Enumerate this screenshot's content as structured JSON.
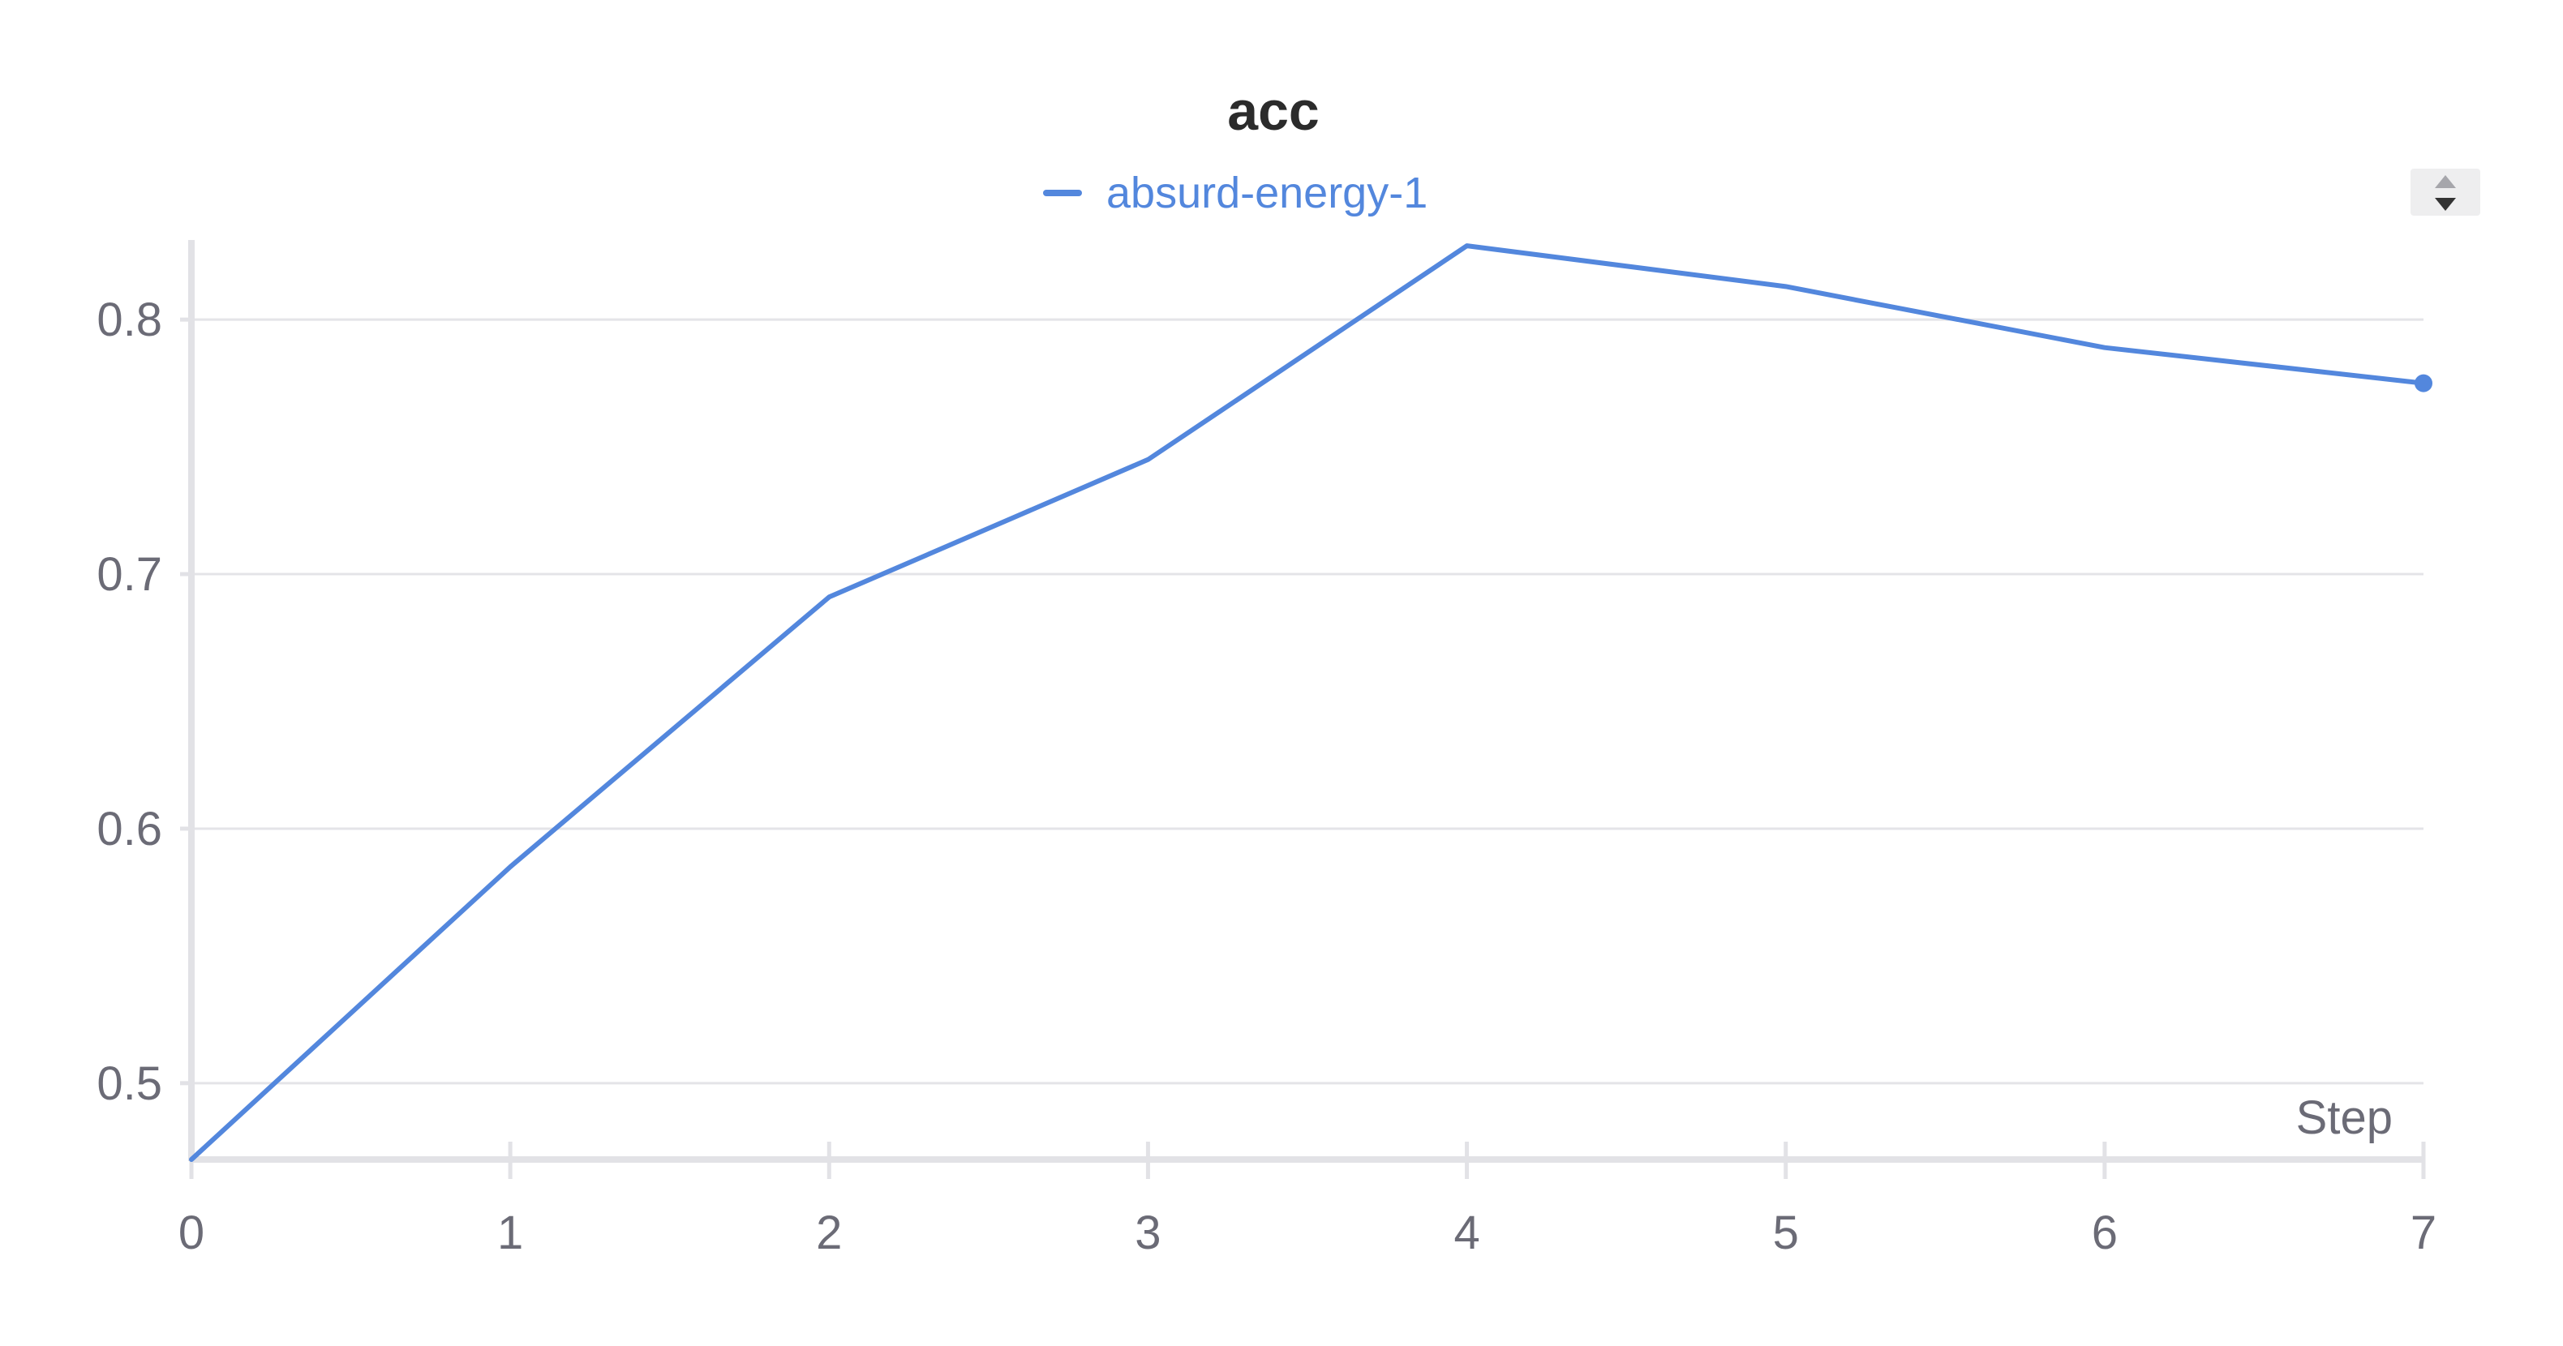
{
  "chart_data": {
    "type": "line",
    "title": "acc",
    "xlabel": "Step",
    "ylabel": "",
    "xlim": [
      0,
      7
    ],
    "ylim": [
      0.47,
      0.83
    ],
    "x_ticks": [
      0,
      1,
      2,
      3,
      4,
      5,
      6,
      7
    ],
    "y_ticks": [
      0.5,
      0.6,
      0.7,
      0.8
    ],
    "grid": true,
    "legend_position": "top-center",
    "series": [
      {
        "name": "absurd-energy-1",
        "color": "#5387dd",
        "x": [
          0,
          1,
          2,
          3,
          4,
          5,
          6,
          7
        ],
        "y": [
          0.47,
          0.585,
          0.691,
          0.745,
          0.829,
          0.813,
          0.789,
          0.775
        ]
      }
    ]
  },
  "controls": {
    "legend_scroll_icon": "up-down-arrows-icon"
  }
}
